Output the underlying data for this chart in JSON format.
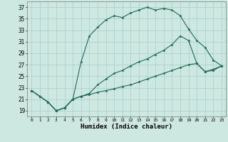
{
  "xlabel": "Humidex (Indice chaleur)",
  "background_color": "#cce8e0",
  "grid_color": "#aacccc",
  "line_color": "#1a6b5a",
  "xlim": [
    -0.5,
    23.5
  ],
  "ylim": [
    18.0,
    38.0
  ],
  "yticks": [
    19,
    21,
    23,
    25,
    27,
    29,
    31,
    33,
    35,
    37
  ],
  "xticks": [
    0,
    1,
    2,
    3,
    4,
    5,
    6,
    7,
    8,
    9,
    10,
    11,
    12,
    13,
    14,
    15,
    16,
    17,
    18,
    19,
    20,
    21,
    22,
    23
  ],
  "line1_y": [
    22.5,
    21.5,
    20.5,
    19.0,
    19.5,
    21.0,
    27.5,
    32.0,
    33.5,
    34.8,
    35.5,
    35.2,
    36.0,
    36.5,
    37.0,
    36.5,
    36.8,
    36.5,
    35.5,
    33.2,
    31.2,
    30.0,
    27.8,
    26.8
  ],
  "line2_y": [
    22.5,
    21.5,
    20.5,
    19.0,
    19.5,
    21.0,
    21.5,
    22.0,
    23.5,
    24.5,
    25.5,
    26.0,
    26.8,
    27.5,
    28.0,
    28.8,
    29.5,
    30.5,
    32.0,
    31.2,
    27.2,
    25.8,
    26.2,
    26.8
  ],
  "line3_y": [
    22.5,
    21.5,
    20.5,
    19.0,
    19.5,
    21.0,
    21.5,
    21.8,
    22.2,
    22.5,
    22.8,
    23.2,
    23.5,
    24.0,
    24.5,
    25.0,
    25.5,
    26.0,
    26.5,
    27.0,
    27.2,
    25.8,
    26.0,
    26.8
  ]
}
